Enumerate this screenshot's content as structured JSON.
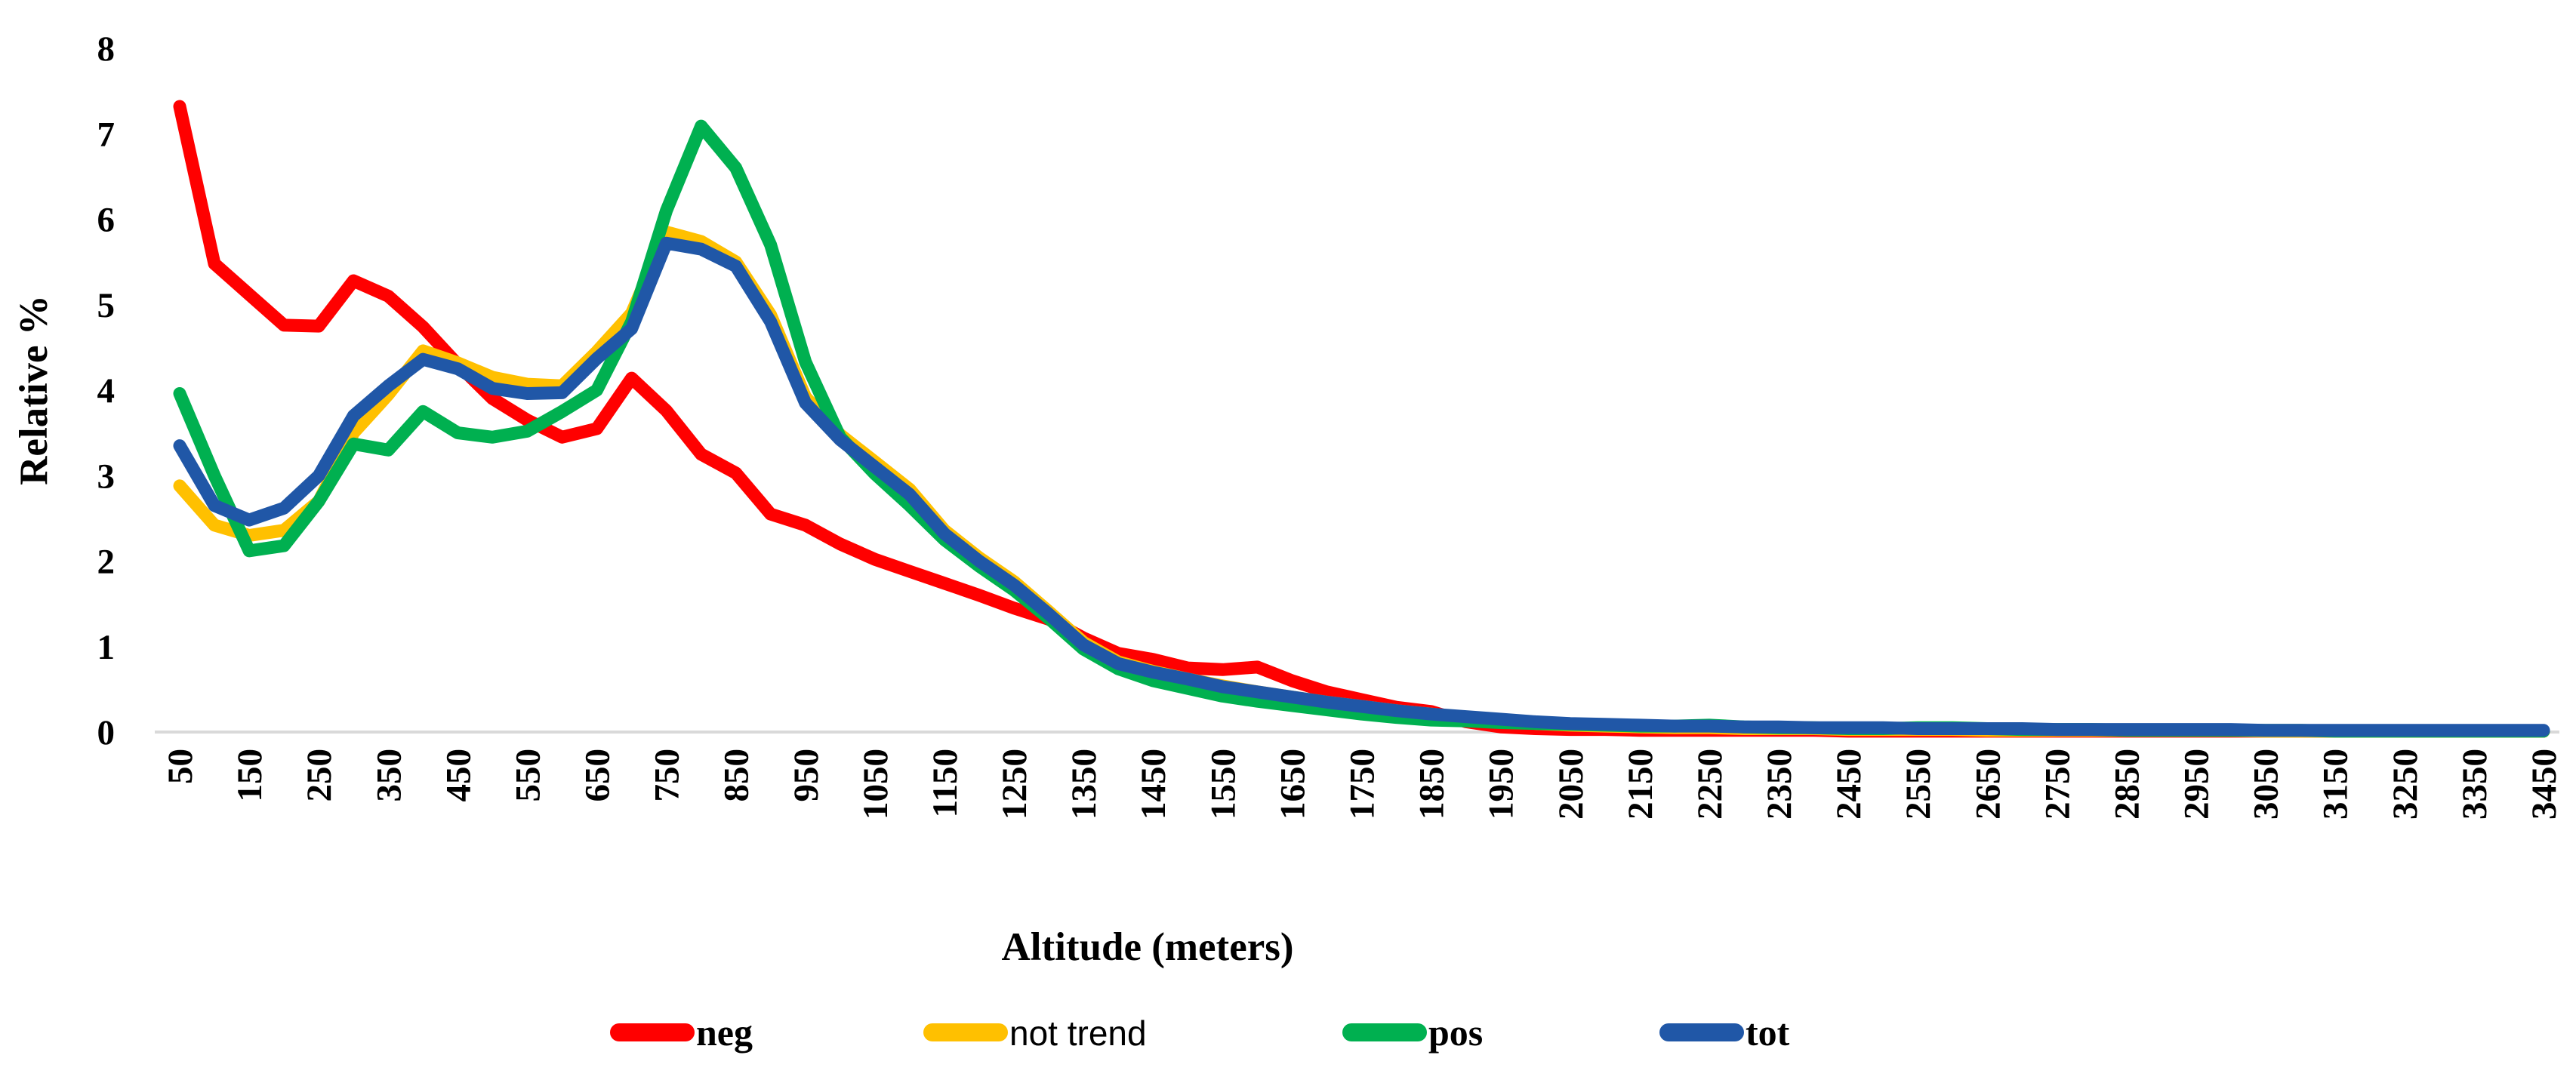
{
  "chart_data": {
    "type": "line",
    "title": "",
    "xlabel": "Altitude (meters)",
    "ylabel": "Relative %",
    "grid": false,
    "legend_position": "bottom",
    "ylim": [
      0,
      8
    ],
    "yticks": [
      0,
      1,
      2,
      3,
      4,
      5,
      6,
      7,
      8
    ],
    "x_tick_labels": [
      "50",
      "150",
      "250",
      "350",
      "450",
      "550",
      "650",
      "750",
      "850",
      "950",
      "1050",
      "1150",
      "1250",
      "1350",
      "1450",
      "1550",
      "1650",
      "1750",
      "1850",
      "1950",
      "2050",
      "2150",
      "2250",
      "2350",
      "2450",
      "2550",
      "2650",
      "2750",
      "2850",
      "2950",
      "3050",
      "3150",
      "3250",
      "3350",
      "3450"
    ],
    "baseline_color": "#D9D9D9",
    "x": [
      50,
      100,
      150,
      200,
      250,
      300,
      350,
      400,
      450,
      500,
      550,
      600,
      650,
      700,
      750,
      800,
      850,
      900,
      950,
      1000,
      1050,
      1100,
      1150,
      1200,
      1250,
      1300,
      1350,
      1400,
      1450,
      1500,
      1550,
      1600,
      1650,
      1700,
      1750,
      1800,
      1850,
      1900,
      1950,
      2000,
      2050,
      2100,
      2150,
      2200,
      2250,
      2300,
      2350,
      2400,
      2450,
      2500,
      2550,
      2600,
      2650,
      2700,
      2750,
      2800,
      2850,
      2900,
      2950,
      3000,
      3050,
      3100,
      3150,
      3200,
      3250,
      3300,
      3350,
      3400,
      3450
    ],
    "series": [
      {
        "name": "neg",
        "color": "#FF0000",
        "values": [
          7.32,
          5.48,
          5.12,
          4.76,
          4.75,
          5.28,
          5.1,
          4.74,
          4.3,
          3.9,
          3.65,
          3.45,
          3.55,
          4.14,
          3.76,
          3.25,
          3.03,
          2.55,
          2.42,
          2.2,
          2.02,
          1.88,
          1.74,
          1.6,
          1.45,
          1.32,
          1.1,
          0.92,
          0.85,
          0.75,
          0.73,
          0.76,
          0.6,
          0.47,
          0.38,
          0.29,
          0.24,
          0.12,
          0.06,
          0.04,
          0.03,
          0.03,
          0.02,
          0.02,
          0.02,
          0.02,
          0.02,
          0.02,
          0.01,
          0.01,
          0.01,
          0.01,
          0.01,
          0.01,
          0.01,
          0.01,
          0.01,
          0.01,
          0.01,
          0.01,
          0.01,
          0.01,
          0.01,
          0.01,
          0.01,
          0.01,
          0.01,
          0.01,
          0.01
        ]
      },
      {
        "name": "not trend",
        "color": "#FFC000",
        "values": [
          2.88,
          2.42,
          2.3,
          2.36,
          2.7,
          3.5,
          3.95,
          4.46,
          4.32,
          4.15,
          4.07,
          4.05,
          4.45,
          4.9,
          5.85,
          5.74,
          5.5,
          4.88,
          3.92,
          3.48,
          3.16,
          2.84,
          2.36,
          2.04,
          1.76,
          1.41,
          1.05,
          0.82,
          0.71,
          0.62,
          0.54,
          0.47,
          0.41,
          0.35,
          0.3,
          0.25,
          0.21,
          0.17,
          0.13,
          0.1,
          0.08,
          0.07,
          0.06,
          0.05,
          0.05,
          0.04,
          0.04,
          0.04,
          0.03,
          0.03,
          0.03,
          0.03,
          0.02,
          0.02,
          0.02,
          0.02,
          0.02,
          0.02,
          0.02,
          0.02,
          0.01,
          0.01,
          0.01,
          0.01,
          0.01,
          0.01,
          0.01,
          0.01,
          0.01
        ]
      },
      {
        "name": "pos",
        "color": "#00B050",
        "values": [
          3.96,
          3.0,
          2.12,
          2.18,
          2.7,
          3.37,
          3.3,
          3.75,
          3.5,
          3.45,
          3.52,
          3.75,
          4.0,
          4.8,
          6.1,
          7.09,
          6.6,
          5.7,
          4.33,
          3.45,
          3.02,
          2.65,
          2.25,
          1.94,
          1.66,
          1.33,
          0.97,
          0.74,
          0.6,
          0.51,
          0.42,
          0.36,
          0.31,
          0.26,
          0.21,
          0.17,
          0.14,
          0.13,
          0.11,
          0.1,
          0.09,
          0.08,
          0.07,
          0.07,
          0.08,
          0.06,
          0.05,
          0.05,
          0.04,
          0.04,
          0.05,
          0.05,
          0.04,
          0.03,
          0.03,
          0.03,
          0.02,
          0.02,
          0.02,
          0.02,
          0.02,
          0.02,
          0.01,
          0.01,
          0.01,
          0.01,
          0.01,
          0.01,
          0.01
        ]
      },
      {
        "name": "tot",
        "color": "#2057A7",
        "values": [
          3.35,
          2.65,
          2.48,
          2.62,
          3.0,
          3.7,
          4.05,
          4.36,
          4.25,
          4.02,
          3.96,
          3.97,
          4.37,
          4.72,
          5.72,
          5.65,
          5.45,
          4.8,
          3.85,
          3.42,
          3.1,
          2.78,
          2.32,
          2.0,
          1.72,
          1.38,
          1.02,
          0.8,
          0.7,
          0.62,
          0.53,
          0.47,
          0.41,
          0.35,
          0.3,
          0.25,
          0.21,
          0.18,
          0.15,
          0.12,
          0.1,
          0.09,
          0.08,
          0.07,
          0.07,
          0.06,
          0.06,
          0.05,
          0.05,
          0.05,
          0.04,
          0.04,
          0.04,
          0.04,
          0.03,
          0.03,
          0.03,
          0.03,
          0.03,
          0.03,
          0.02,
          0.02,
          0.02,
          0.02,
          0.02,
          0.02,
          0.02,
          0.02,
          0.02
        ]
      }
    ]
  }
}
